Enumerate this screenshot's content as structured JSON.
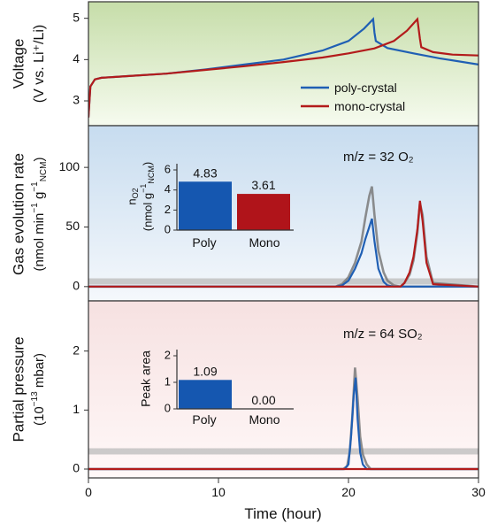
{
  "chart_data": [
    {
      "type": "line",
      "ylabel_lines": [
        "Voltage",
        "(V vs. Li⁺/Li)"
      ],
      "ylim": [
        2.4,
        5.4
      ],
      "yticks": [
        3,
        4,
        5
      ],
      "xlim": [
        0,
        30
      ],
      "legend": {
        "position": "bottom-right",
        "entries": [
          "poly-crystal",
          "mono-crystal"
        ]
      },
      "series": [
        {
          "name": "poly-crystal",
          "color": "#1f5fb4",
          "x": [
            0,
            0.15,
            0.5,
            1,
            3,
            6,
            9,
            12,
            15,
            18,
            20,
            21.2,
            21.9,
            22.0,
            22.1,
            23,
            25,
            27,
            30
          ],
          "y": [
            2.6,
            3.35,
            3.52,
            3.56,
            3.6,
            3.66,
            3.76,
            3.88,
            4.0,
            4.22,
            4.45,
            4.75,
            4.98,
            4.65,
            4.45,
            4.28,
            4.15,
            4.03,
            3.88
          ]
        },
        {
          "name": "mono-crystal",
          "color": "#b31b1b",
          "x": [
            0,
            0.15,
            0.5,
            1,
            3,
            6,
            9,
            12,
            15,
            18,
            20,
            22,
            23.5,
            24.5,
            25.3,
            25.5,
            25.6,
            26.5,
            28,
            30
          ],
          "y": [
            2.6,
            3.35,
            3.52,
            3.56,
            3.6,
            3.66,
            3.75,
            3.84,
            3.94,
            4.05,
            4.15,
            4.27,
            4.45,
            4.7,
            4.98,
            4.5,
            4.3,
            4.18,
            4.12,
            4.1
          ]
        }
      ]
    },
    {
      "type": "line",
      "ylabel_lines": [
        "Gas evolution rate",
        "(nmol min⁻¹ g⁻¹NCM)"
      ],
      "ylim": [
        -12,
        135
      ],
      "yticks": [
        0,
        50,
        100
      ],
      "xlim": [
        0,
        30
      ],
      "annotation": "m/z = 32 O₂",
      "series": [
        {
          "name": "poly raw",
          "color": "#7a7a7a",
          "x": [
            0,
            19,
            19.5,
            20,
            20.5,
            21,
            21.3,
            21.6,
            21.8,
            22,
            22.3,
            22.7,
            23,
            23.5,
            24,
            30
          ],
          "y": [
            0,
            0,
            2,
            8,
            20,
            38,
            58,
            76,
            84,
            60,
            30,
            12,
            5,
            1,
            0,
            0
          ]
        },
        {
          "name": "mono raw",
          "color": "#7a7a7a",
          "x": [
            0,
            24,
            24.3,
            24.7,
            25,
            25.3,
            25.5,
            25.7,
            26,
            26.5,
            30
          ],
          "y": [
            0,
            0,
            3,
            10,
            22,
            45,
            70,
            60,
            25,
            3,
            0
          ]
        },
        {
          "name": "poly fit",
          "color": "#1f5fb4",
          "x": [
            0,
            19,
            19.5,
            20,
            20.5,
            21,
            21.3,
            21.6,
            21.8,
            22,
            22.3,
            22.7,
            23,
            23.5,
            24,
            30
          ],
          "y": [
            0,
            0,
            1,
            5,
            15,
            28,
            40,
            50,
            57,
            38,
            15,
            4,
            1,
            0,
            0,
            0
          ]
        },
        {
          "name": "mono fit",
          "color": "#b31b1b",
          "x": [
            0,
            24,
            24.3,
            24.7,
            25,
            25.3,
            25.5,
            25.7,
            26,
            26.5,
            30
          ],
          "y": [
            0,
            0,
            3,
            12,
            25,
            48,
            72,
            55,
            20,
            2,
            0
          ]
        }
      ],
      "inset": {
        "type": "bar",
        "ylabel": "nO₂ (nmol g⁻¹NCM)",
        "categories": [
          "Poly",
          "Mono"
        ],
        "values": [
          4.83,
          3.61
        ],
        "value_labels": [
          "4.83",
          "3.61"
        ],
        "ylim": [
          0,
          6
        ],
        "yticks": [
          0,
          2,
          4,
          6
        ],
        "colors": [
          "#1557b0",
          "#b0141a"
        ]
      }
    },
    {
      "type": "line",
      "ylabel_lines": [
        "Partial pressure",
        "(10⁻¹³ mbar)"
      ],
      "ylim": [
        -0.15,
        2.85
      ],
      "yticks": [
        0,
        1,
        2
      ],
      "xlim": [
        0,
        30
      ],
      "xticks": [
        0,
        10,
        20,
        30
      ],
      "xlabel": "Time (hour)",
      "annotation": "m/z = 64 SO₂",
      "series": [
        {
          "name": "poly raw",
          "color": "#7a7a7a",
          "x": [
            0,
            19.6,
            19.9,
            20.1,
            20.3,
            20.5,
            20.7,
            20.9,
            21.1,
            21.4,
            21.7,
            30
          ],
          "y": [
            0,
            0,
            0.05,
            0.3,
            0.9,
            1.72,
            1.2,
            0.55,
            0.25,
            0.08,
            0,
            0
          ]
        },
        {
          "name": "poly fit",
          "color": "#1f5fb4",
          "x": [
            0,
            19.7,
            20,
            20.2,
            20.4,
            20.55,
            20.7,
            20.9,
            21.1,
            21.4,
            30
          ],
          "y": [
            0,
            0,
            0.08,
            0.55,
            1.25,
            1.55,
            0.85,
            0.28,
            0.08,
            0,
            0
          ]
        },
        {
          "name": "mono",
          "color": "#b31b1b",
          "x": [
            0,
            30
          ],
          "y": [
            0,
            0
          ]
        }
      ],
      "inset": {
        "type": "bar",
        "ylabel": "Peak area",
        "categories": [
          "Poly",
          "Mono"
        ],
        "values": [
          1.09,
          0.0
        ],
        "value_labels": [
          "1.09",
          "0.00"
        ],
        "ylim": [
          0,
          2
        ],
        "yticks": [
          0,
          1,
          2
        ],
        "colors": [
          "#1557b0",
          "#b0141a"
        ]
      }
    }
  ]
}
